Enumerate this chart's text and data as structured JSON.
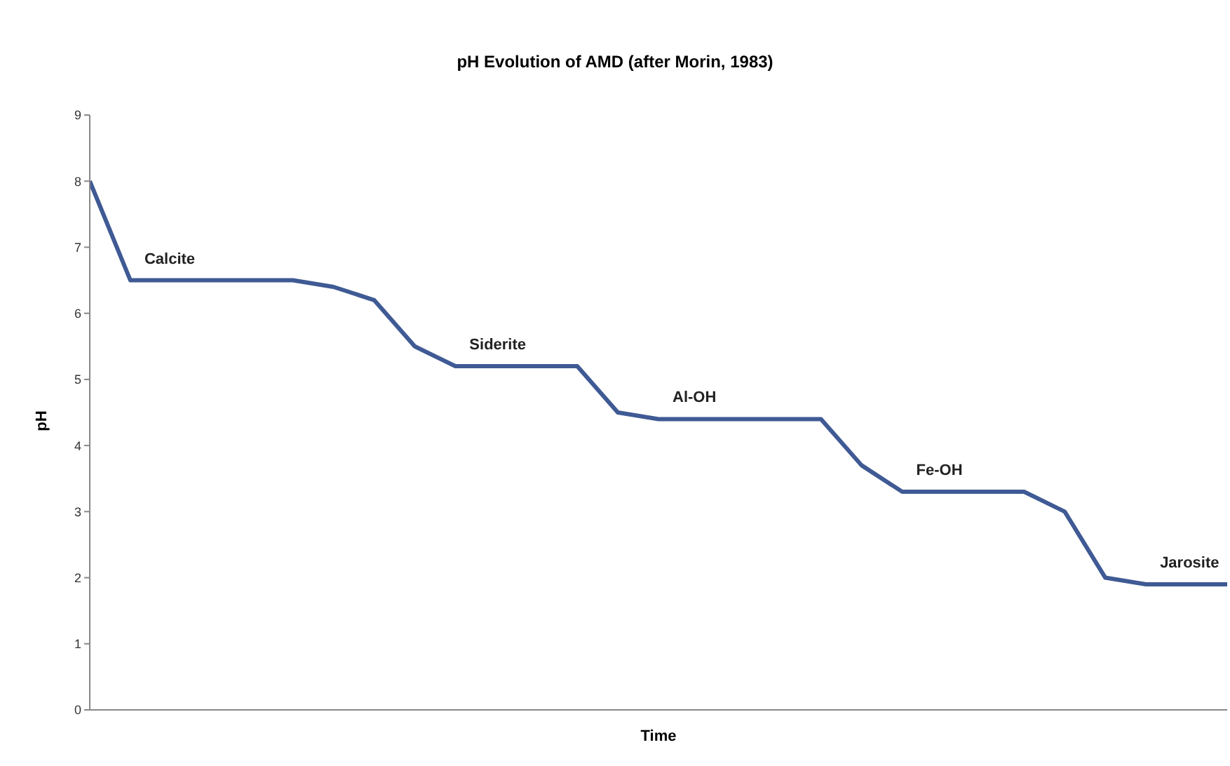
{
  "chart_data": {
    "type": "line",
    "title": "pH Evolution of AMD (after Morin, 1983)",
    "xlabel": "Time",
    "ylabel": "pH",
    "categories": [
      null,
      null,
      null,
      null,
      null,
      null,
      null,
      null,
      null,
      null,
      null,
      null,
      null,
      null,
      null,
      null,
      null,
      null,
      null,
      null,
      null,
      null,
      null,
      null,
      null,
      null,
      null,
      null,
      null
    ],
    "series": [
      {
        "color": "#3f5a94",
        "values": [
          8.0,
          6.5,
          6.5,
          6.5,
          6.5,
          6.5,
          6.4,
          6.2,
          5.5,
          5.2,
          5.2,
          5.2,
          5.2,
          4.5,
          4.4,
          4.4,
          4.4,
          4.4,
          4.4,
          3.7,
          3.3,
          3.3,
          3.3,
          3.3,
          3.0,
          2.0,
          1.9,
          1.9,
          1.9
        ]
      }
    ],
    "ylim": [
      0,
      9
    ],
    "yticks": [
      0,
      1,
      2,
      3,
      4,
      5,
      6,
      7,
      8,
      9
    ],
    "grid": false,
    "legend": false,
    "marker": "none",
    "line_style": "solid",
    "annotations": [
      "Calcite",
      "Siderite",
      "Al-OH",
      "Fe-OH",
      "Jarosite"
    ]
  }
}
